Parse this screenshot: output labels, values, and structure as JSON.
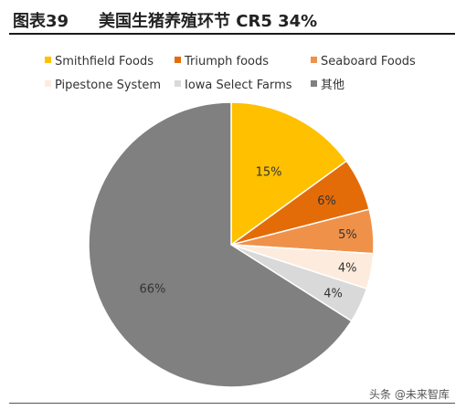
{
  "figure": {
    "number": "图表39",
    "title": "美国生猪养殖环节 CR5 34%"
  },
  "watermark": "头条 @未来智库",
  "chart_data": {
    "type": "pie",
    "categories": [
      "Smithfield Foods",
      "Triumph foods",
      "Seaboard Foods",
      "Pipestone System",
      "Iowa Select Farms",
      "其他"
    ],
    "values": [
      15,
      6,
      5,
      4,
      4,
      66
    ],
    "labels": [
      "15%",
      "6%",
      "5%",
      "4%",
      "4%",
      "66%"
    ],
    "colors": [
      "#FFC000",
      "#E36C09",
      "#F0914A",
      "#FDEBDD",
      "#D9D9D9",
      "#808080"
    ],
    "start_angle": "12 o'clock",
    "direction": "clockwise",
    "legend_position": "top"
  }
}
